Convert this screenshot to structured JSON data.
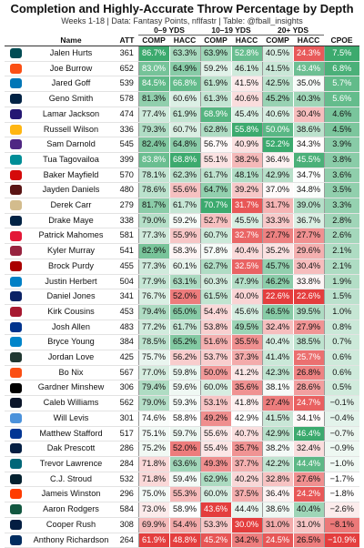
{
  "chart_data": {
    "type": "table",
    "title": "Completion and Highly-Accurate Throw Percentage by Depth",
    "subtitle": "Weeks 1-18 | Data: Fantasy Points, nflfastr | Table: @fball_insights",
    "group_headers": [
      "0–9 YDS",
      "10–19 YDS",
      "20+ YDS"
    ],
    "columns": [
      "Name",
      "ATT",
      "COMP",
      "HACC",
      "COMP",
      "HACC",
      "COMP",
      "HACC",
      "CPOE"
    ],
    "rows": [
      {
        "name": "Jalen Hurts",
        "att": "361",
        "vals": [
          "86.7%",
          "63.3%",
          "63.9%",
          "52.8%",
          "40.5%",
          "24.3%",
          "7.5%"
        ],
        "team_color": "#004C54"
      },
      {
        "name": "Joe Burrow",
        "att": "652",
        "vals": [
          "83.0%",
          "64.9%",
          "59.2%",
          "46.1%",
          "41.5%",
          "43.4%",
          "6.8%"
        ],
        "team_color": "#FB4F14"
      },
      {
        "name": "Jared Goff",
        "att": "539",
        "vals": [
          "84.5%",
          "66.8%",
          "61.9%",
          "41.5%",
          "42.5%",
          "35.0%",
          "5.7%"
        ],
        "team_color": "#0076B6"
      },
      {
        "name": "Geno Smith",
        "att": "578",
        "vals": [
          "81.3%",
          "60.6%",
          "61.3%",
          "40.6%",
          "45.2%",
          "40.3%",
          "5.6%"
        ],
        "team_color": "#002244"
      },
      {
        "name": "Lamar Jackson",
        "att": "474",
        "vals": [
          "77.4%",
          "61.9%",
          "68.9%",
          "45.4%",
          "40.6%",
          "30.4%",
          "4.6%"
        ],
        "team_color": "#241773"
      },
      {
        "name": "Russell Wilson",
        "att": "336",
        "vals": [
          "79.3%",
          "60.7%",
          "62.8%",
          "55.8%",
          "50.0%",
          "38.6%",
          "4.5%"
        ],
        "team_color": "#FFB612"
      },
      {
        "name": "Sam Darnold",
        "att": "545",
        "vals": [
          "82.4%",
          "64.8%",
          "56.7%",
          "40.9%",
          "52.2%",
          "34.3%",
          "3.9%"
        ],
        "team_color": "#4F2683"
      },
      {
        "name": "Tua Tagovailoa",
        "att": "399",
        "vals": [
          "83.8%",
          "68.8%",
          "55.1%",
          "38.2%",
          "36.4%",
          "45.5%",
          "3.8%"
        ],
        "team_color": "#008E97"
      },
      {
        "name": "Baker Mayfield",
        "att": "570",
        "vals": [
          "78.1%",
          "62.3%",
          "61.7%",
          "48.1%",
          "42.9%",
          "34.7%",
          "3.6%"
        ],
        "team_color": "#D50A0A"
      },
      {
        "name": "Jayden Daniels",
        "att": "480",
        "vals": [
          "78.6%",
          "55.6%",
          "64.7%",
          "39.2%",
          "37.0%",
          "34.8%",
          "3.5%"
        ],
        "team_color": "#5A1414"
      },
      {
        "name": "Derek Carr",
        "att": "279",
        "vals": [
          "81.7%",
          "61.7%",
          "70.7%",
          "31.7%",
          "31.7%",
          "39.0%",
          "3.3%"
        ],
        "team_color": "#D3BC8D"
      },
      {
        "name": "Drake Maye",
        "att": "338",
        "vals": [
          "79.0%",
          "59.2%",
          "52.7%",
          "45.5%",
          "33.3%",
          "36.7%",
          "2.8%"
        ],
        "team_color": "#002244"
      },
      {
        "name": "Patrick Mahomes",
        "att": "581",
        "vals": [
          "77.3%",
          "55.9%",
          "60.7%",
          "32.7%",
          "27.7%",
          "27.7%",
          "2.6%"
        ],
        "team_color": "#E31837"
      },
      {
        "name": "Kyler Murray",
        "att": "541",
        "vals": [
          "82.9%",
          "58.3%",
          "57.8%",
          "40.4%",
          "35.2%",
          "29.6%",
          "2.1%"
        ],
        "team_color": "#97233F"
      },
      {
        "name": "Brock Purdy",
        "att": "455",
        "vals": [
          "77.3%",
          "60.1%",
          "62.7%",
          "32.5%",
          "45.7%",
          "30.4%",
          "2.1%"
        ],
        "team_color": "#AA0000"
      },
      {
        "name": "Justin Herbert",
        "att": "504",
        "vals": [
          "77.9%",
          "63.1%",
          "60.3%",
          "47.9%",
          "46.2%",
          "33.8%",
          "1.9%"
        ],
        "team_color": "#0080C6"
      },
      {
        "name": "Daniel Jones",
        "att": "341",
        "vals": [
          "76.7%",
          "52.0%",
          "61.5%",
          "40.0%",
          "22.6%",
          "22.6%",
          "1.5%"
        ],
        "team_color": "#0B2265"
      },
      {
        "name": "Kirk Cousins",
        "att": "453",
        "vals": [
          "79.4%",
          "65.0%",
          "54.4%",
          "45.6%",
          "46.5%",
          "39.5%",
          "1.0%"
        ],
        "team_color": "#A71930"
      },
      {
        "name": "Josh Allen",
        "att": "483",
        "vals": [
          "77.2%",
          "61.7%",
          "53.8%",
          "49.5%",
          "32.4%",
          "27.9%",
          "0.8%"
        ],
        "team_color": "#00338D"
      },
      {
        "name": "Bryce Young",
        "att": "384",
        "vals": [
          "78.5%",
          "65.2%",
          "51.6%",
          "35.5%",
          "40.4%",
          "38.5%",
          "0.7%"
        ],
        "team_color": "#0085CA"
      },
      {
        "name": "Jordan Love",
        "att": "425",
        "vals": [
          "75.7%",
          "56.2%",
          "53.7%",
          "37.3%",
          "41.4%",
          "25.7%",
          "0.6%"
        ],
        "team_color": "#203731"
      },
      {
        "name": "Bo Nix",
        "att": "567",
        "vals": [
          "77.0%",
          "59.8%",
          "50.0%",
          "41.2%",
          "42.3%",
          "26.8%",
          "0.6%"
        ],
        "team_color": "#FB4F14"
      },
      {
        "name": "Gardner Minshew",
        "att": "306",
        "vals": [
          "79.4%",
          "59.6%",
          "60.0%",
          "35.6%",
          "38.1%",
          "28.6%",
          "0.5%"
        ],
        "team_color": "#000000"
      },
      {
        "name": "Caleb Williams",
        "att": "562",
        "vals": [
          "79.0%",
          "59.3%",
          "53.1%",
          "41.8%",
          "27.4%",
          "24.7%",
          "−0.1%"
        ],
        "team_color": "#0B162A"
      },
      {
        "name": "Will Levis",
        "att": "301",
        "vals": [
          "74.6%",
          "58.8%",
          "49.2%",
          "42.9%",
          "41.5%",
          "34.1%",
          "−0.4%"
        ],
        "team_color": "#4B92DB"
      },
      {
        "name": "Matthew Stafford",
        "att": "517",
        "vals": [
          "75.1%",
          "59.7%",
          "55.6%",
          "40.7%",
          "42.9%",
          "46.4%",
          "−0.7%"
        ],
        "team_color": "#003594"
      },
      {
        "name": "Dak Prescott",
        "att": "286",
        "vals": [
          "75.2%",
          "52.0%",
          "55.4%",
          "35.7%",
          "38.2%",
          "32.4%",
          "−0.9%"
        ],
        "team_color": "#041E42"
      },
      {
        "name": "Trevor Lawrence",
        "att": "284",
        "vals": [
          "71.8%",
          "63.6%",
          "49.3%",
          "37.7%",
          "42.2%",
          "44.4%",
          "−1.0%"
        ],
        "team_color": "#006778"
      },
      {
        "name": "C.J. Stroud",
        "att": "532",
        "vals": [
          "71.8%",
          "59.4%",
          "62.9%",
          "40.2%",
          "32.8%",
          "27.6%",
          "−1.7%"
        ],
        "team_color": "#03202F"
      },
      {
        "name": "Jameis Winston",
        "att": "296",
        "vals": [
          "75.0%",
          "55.3%",
          "60.0%",
          "37.5%",
          "36.4%",
          "24.2%",
          "−1.8%"
        ],
        "team_color": "#FF3C00"
      },
      {
        "name": "Aaron Rodgers",
        "att": "584",
        "vals": [
          "73.0%",
          "58.9%",
          "43.6%",
          "44.4%",
          "38.6%",
          "40.4%",
          "−2.6%"
        ],
        "team_color": "#125740"
      },
      {
        "name": "Cooper Rush",
        "att": "308",
        "vals": [
          "69.9%",
          "54.4%",
          "53.3%",
          "30.0%",
          "31.0%",
          "31.0%",
          "−8.1%"
        ],
        "team_color": "#041E42"
      },
      {
        "name": "Anthony Richardson",
        "att": "264",
        "vals": [
          "61.9%",
          "48.8%",
          "45.2%",
          "34.2%",
          "24.5%",
          "26.5%",
          "−10.9%"
        ],
        "team_color": "#002C5F"
      }
    ]
  }
}
